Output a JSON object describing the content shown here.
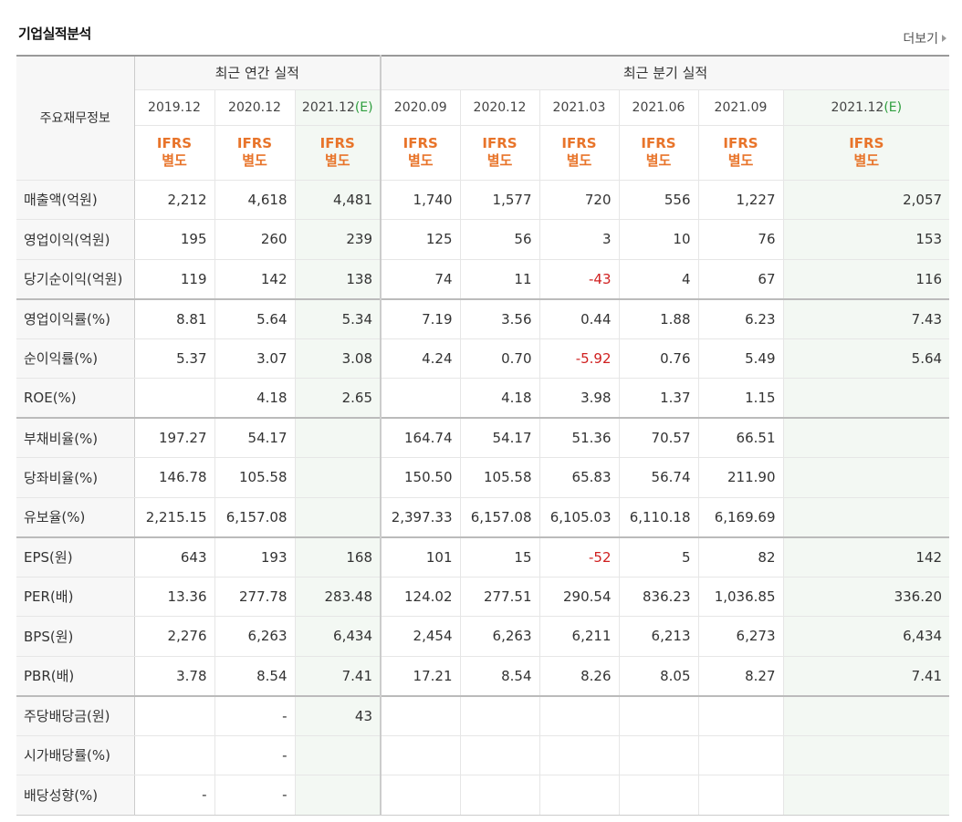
{
  "title": "기업실적분석",
  "more": "더보기",
  "label_header": "주요재무정보",
  "group_annual": "최근 연간 실적",
  "group_quarter": "최근 분기 실적",
  "periods": [
    {
      "label": "2019.12",
      "est": ""
    },
    {
      "label": "2020.12",
      "est": ""
    },
    {
      "label": "2021.12",
      "est": "(E)"
    },
    {
      "label": "2020.09",
      "est": ""
    },
    {
      "label": "2020.12",
      "est": ""
    },
    {
      "label": "2021.03",
      "est": ""
    },
    {
      "label": "2021.06",
      "est": ""
    },
    {
      "label": "2021.09",
      "est": ""
    },
    {
      "label": "2021.12",
      "est": "(E)"
    }
  ],
  "ifrs_line1": "IFRS",
  "ifrs_line2": "별도",
  "rows": [
    {
      "label": "매출액(억원)",
      "values": [
        "2,212",
        "4,618",
        "4,481",
        "1,740",
        "1,577",
        "720",
        "556",
        "1,227",
        "2,057"
      ]
    },
    {
      "label": "영업이익(억원)",
      "values": [
        "195",
        "260",
        "239",
        "125",
        "56",
        "3",
        "10",
        "76",
        "153"
      ]
    },
    {
      "label": "당기순이익(억원)",
      "values": [
        "119",
        "142",
        "138",
        "74",
        "11",
        "-43",
        "4",
        "67",
        "116"
      ]
    },
    {
      "label": "영업이익률(%)",
      "values": [
        "8.81",
        "5.64",
        "5.34",
        "7.19",
        "3.56",
        "0.44",
        "1.88",
        "6.23",
        "7.43"
      ]
    },
    {
      "label": "순이익률(%)",
      "values": [
        "5.37",
        "3.07",
        "3.08",
        "4.24",
        "0.70",
        "-5.92",
        "0.76",
        "5.49",
        "5.64"
      ]
    },
    {
      "label": "ROE(%)",
      "values": [
        "",
        "4.18",
        "2.65",
        "",
        "4.18",
        "3.98",
        "1.37",
        "1.15",
        ""
      ]
    },
    {
      "label": "부채비율(%)",
      "values": [
        "197.27",
        "54.17",
        "",
        "164.74",
        "54.17",
        "51.36",
        "70.57",
        "66.51",
        ""
      ]
    },
    {
      "label": "당좌비율(%)",
      "values": [
        "146.78",
        "105.58",
        "",
        "150.50",
        "105.58",
        "65.83",
        "56.74",
        "211.90",
        ""
      ]
    },
    {
      "label": "유보율(%)",
      "values": [
        "2,215.15",
        "6,157.08",
        "",
        "2,397.33",
        "6,157.08",
        "6,105.03",
        "6,110.18",
        "6,169.69",
        ""
      ]
    },
    {
      "label": "EPS(원)",
      "values": [
        "643",
        "193",
        "168",
        "101",
        "15",
        "-52",
        "5",
        "82",
        "142"
      ]
    },
    {
      "label": "PER(배)",
      "values": [
        "13.36",
        "277.78",
        "283.48",
        "124.02",
        "277.51",
        "290.54",
        "836.23",
        "1,036.85",
        "336.20"
      ]
    },
    {
      "label": "BPS(원)",
      "values": [
        "2,276",
        "6,263",
        "6,434",
        "2,454",
        "6,263",
        "6,211",
        "6,213",
        "6,273",
        "6,434"
      ]
    },
    {
      "label": "PBR(배)",
      "values": [
        "3.78",
        "8.54",
        "7.41",
        "17.21",
        "8.54",
        "8.26",
        "8.05",
        "8.27",
        "7.41"
      ]
    },
    {
      "label": "주당배당금(원)",
      "values": [
        "",
        "-",
        "43",
        "",
        "",
        "",
        "",
        "",
        ""
      ]
    },
    {
      "label": "시가배당률(%)",
      "values": [
        "",
        "-",
        "",
        "",
        "",
        "",
        "",
        "",
        ""
      ]
    },
    {
      "label": "배당성향(%)",
      "values": [
        "-",
        "-",
        "",
        "",
        "",
        "",
        "",
        "",
        ""
      ]
    }
  ],
  "colors": {
    "negative": "#d02020",
    "ifrs": "#e8742a",
    "estimate_mark": "#2e9e3e"
  }
}
